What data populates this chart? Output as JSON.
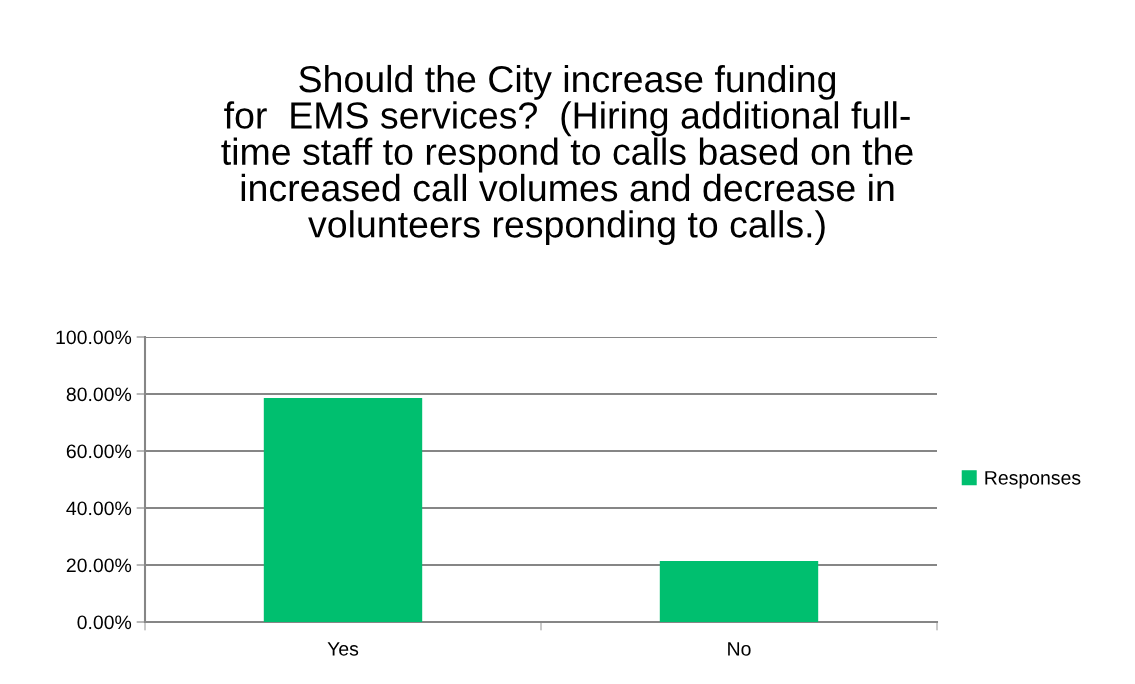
{
  "chart_data": {
    "type": "bar",
    "title": "Should the City increase funding\nfor  EMS services?  (Hiring additional full-\ntime staff to respond to calls based on the\nincreased call volumes and decrease in\nvolunteers responding to calls.)",
    "categories": [
      "Yes",
      "No"
    ],
    "series": [
      {
        "name": "Responses",
        "color": "#00bf6f",
        "values": [
          78.6,
          21.4
        ]
      }
    ],
    "ylim": [
      0,
      100
    ],
    "yticks": [
      {
        "value": 0,
        "label": "0.00%"
      },
      {
        "value": 20,
        "label": "20.00%"
      },
      {
        "value": 40,
        "label": "40.00%"
      },
      {
        "value": 60,
        "label": "60.00%"
      },
      {
        "value": 80,
        "label": "80.00%"
      },
      {
        "value": 100,
        "label": "100.00%"
      }
    ],
    "grid": "y",
    "legend": "right"
  }
}
